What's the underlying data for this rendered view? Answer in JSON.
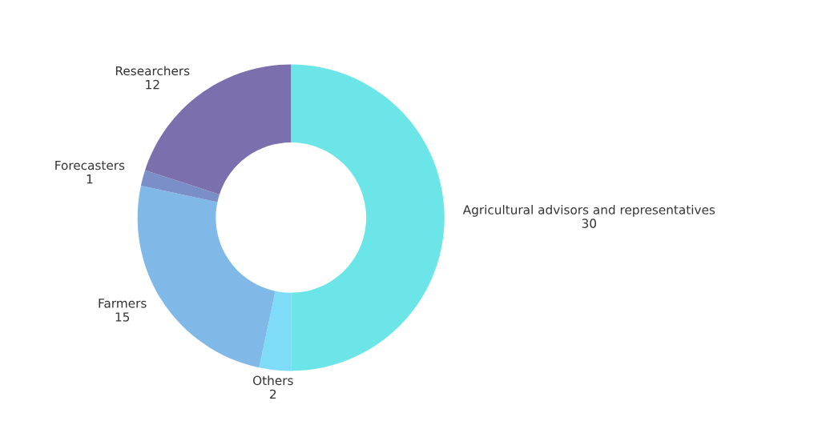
{
  "chart_data": {
    "type": "donut",
    "categories": [
      "Agricultural advisors and representatives",
      "Others",
      "Farmers",
      "Forecasters",
      "Researchers"
    ],
    "values": [
      30,
      2,
      15,
      1,
      12
    ],
    "colors": [
      "#6ce5e8",
      "#7fdcf8",
      "#80b8e8",
      "#7a8fc8",
      "#7b6fae"
    ],
    "data_labels": true,
    "legend": false
  }
}
